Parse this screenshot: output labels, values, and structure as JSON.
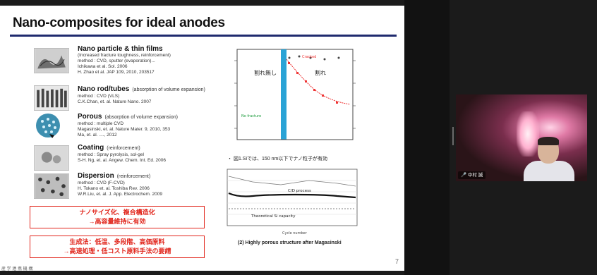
{
  "slide": {
    "title": "Nano-composites for ideal anodes",
    "items": [
      {
        "head": "Nano particle & thin films",
        "sub": "",
        "lines": [
          "(Increased fracture toughness, reinforcement)",
          "method : CVD, sputter (evaporation)...",
          "Ichikawa et al. Sol. 2006",
          "H. Zhao et al. JAP 109, 2010, 203517"
        ]
      },
      {
        "head": "Nano rod/tubes",
        "sub": "(absorption of volume expansion)",
        "lines": [
          "method : CVD (VLS)",
          "C.K.Chan, et. al. Nature Nano. 2007"
        ]
      },
      {
        "head": "Porous",
        "sub": "(absorption of volume expansion)",
        "lines": [
          "method : multiple CVD",
          "Magasinski, et. al. Nature Mater. 9, 2010, 353",
          "Ma, et. al. ...., 2012"
        ]
      },
      {
        "head": "Coating",
        "sub": "(reinforcement)",
        "lines": [
          "method : Spray pyrolysis, sol-gel",
          "S-H. Ng, et. al. Angew. Chem. Int. Ed. 2006"
        ]
      },
      {
        "head": "Dispersion",
        "sub": "(reinforcement)",
        "lines": [
          "method : CVD (F-CVD)",
          "H. Tokano et. al. Toshiba Rev. 2006",
          "W.R.Liu, et. al. J. App. Electrochem. 2009"
        ]
      }
    ],
    "redbox1": [
      "ナノサイズ化、複合構造化",
      "→高容量維持に有効"
    ],
    "redbox2": [
      "生成法：低温、多段階、高価原料",
      "→高速処理・低コスト原料手法の要請"
    ],
    "chart1": {
      "label_left": "割れ無し",
      "label_right": "割れ",
      "legend1": "Cracked",
      "legend2": "No fracture"
    },
    "caption1": "・ 図1.Siでは、150 nm以下でナノ粒子が有効",
    "chart2": {
      "label_top": "C/D process",
      "label_bottom": "Theoretical Si capacity",
      "xlabel": "Cycle number"
    },
    "caption2": "(2) Highly porous structure after Magasinski",
    "page_number": "7",
    "footer": "産 学 連 携 機 構"
  },
  "video": {
    "name": "🎤 中村  誠"
  }
}
